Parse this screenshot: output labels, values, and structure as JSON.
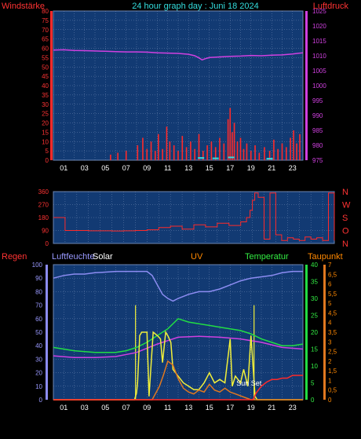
{
  "colors": {
    "background": "#000000",
    "plot_bg": "#123a73",
    "grid": "#6d86b3",
    "red": "#ff2a2a",
    "magenta": "#d040e0",
    "cyan": "#33dddd",
    "lavender": "#8c8cf2",
    "yellow": "#f2f03a",
    "orange": "#e07820",
    "green": "#22dd44",
    "white": "#ffffff",
    "tick_text": "#ffffff",
    "axis_text_red": "#ff3333",
    "axis_text_green": "#33ee44",
    "axis_text_magenta": "#dd44dd",
    "axis_text_orange": "#ff8800",
    "title_cyan": "#33dddd",
    "lavender_text": "#9999ff"
  },
  "header": {
    "title": "24 hour graph day : Juni 18 2024",
    "left_label": "Windstärke",
    "right_label": "Luftdruck"
  },
  "x_ticks": [
    "01",
    "03",
    "05",
    "07",
    "09",
    "11",
    "13",
    "15",
    "17",
    "19",
    "21",
    "23"
  ],
  "chart_data": [
    {
      "id": "wind-pressure",
      "type": "line",
      "y_left": {
        "label": "Windstärke",
        "ticks": [
          "0",
          "5",
          "10",
          "15",
          "20",
          "25",
          "30",
          "35",
          "40",
          "45",
          "50",
          "55",
          "60",
          "65",
          "70",
          "75",
          "80"
        ],
        "range": [
          0,
          80
        ]
      },
      "y_right": {
        "label": "Luftdruck",
        "ticks": [
          "975",
          "980",
          "985",
          "990",
          "995",
          "1000",
          "1005",
          "1010",
          "1015",
          "1020",
          "1025"
        ],
        "range": [
          975,
          1025
        ]
      },
      "pressure": {
        "x": [
          0,
          1,
          2,
          3,
          4,
          5,
          6,
          7,
          8,
          9,
          10,
          11,
          12,
          13,
          13.6,
          14,
          14.3,
          14.6,
          15,
          16,
          17,
          18,
          19,
          20,
          21,
          22,
          23,
          24
        ],
        "y": [
          1011.9,
          1012.0,
          1011.8,
          1011.7,
          1011.6,
          1011.5,
          1011.4,
          1011.3,
          1011.3,
          1011.2,
          1011.0,
          1010.9,
          1010.8,
          1010.5,
          1010.0,
          1009.3,
          1008.6,
          1009.0,
          1009.4,
          1009.6,
          1009.8,
          1009.9,
          1010.1,
          1010.0,
          1010.2,
          1010.3,
          1010.6,
          1011.0
        ]
      },
      "wind_bars": {
        "x": [
          5.5,
          6.2,
          7.0,
          8.1,
          8.6,
          9.0,
          9.4,
          9.8,
          10.1,
          10.5,
          10.9,
          11.2,
          11.6,
          12.0,
          12.4,
          12.8,
          13.2,
          13.6,
          14.0,
          14.4,
          14.8,
          15.2,
          15.6,
          16.0,
          16.4,
          16.8,
          17.0,
          17.2,
          17.4,
          17.7,
          18.0,
          18.3,
          18.6,
          19.0,
          19.4,
          19.8,
          20.3,
          20.8,
          21.2,
          21.6,
          22.0,
          22.4,
          22.8,
          23.1,
          23.4,
          23.7
        ],
        "values": [
          3,
          4,
          5,
          8,
          12,
          6,
          10,
          5,
          14,
          6,
          18,
          10,
          8,
          5,
          13,
          7,
          10,
          6,
          14,
          5,
          8,
          10,
          7,
          12,
          9,
          22,
          28,
          15,
          20,
          10,
          12,
          6,
          9,
          5,
          8,
          4,
          7,
          5,
          11,
          6,
          9,
          7,
          12,
          16,
          9,
          14
        ]
      },
      "wind_gust_cyan": {
        "x": [
          14.2,
          15.6,
          17.1,
          20.8
        ],
        "values": [
          1.2,
          1.0,
          1.5,
          0.8
        ]
      }
    },
    {
      "id": "wind-direction",
      "type": "line",
      "y_left": {
        "ticks": [
          "0",
          "90",
          "180",
          "270",
          "360"
        ],
        "range": [
          0,
          360
        ]
      },
      "y_right": {
        "compass": [
          "N",
          "W",
          "S",
          "O",
          "N"
        ]
      },
      "direction": {
        "x": [
          0,
          0.9,
          1.0,
          2,
          3,
          4,
          5,
          6,
          7,
          8,
          9,
          10,
          11,
          12,
          13,
          14,
          15,
          16,
          16.5,
          16.8,
          17.0,
          17.2,
          17.5,
          18,
          18.5,
          19,
          19.5,
          20,
          20.5,
          21,
          21.5,
          22,
          22.5,
          23,
          23.5,
          24
        ],
        "y": [
          180,
          180,
          90,
          90,
          88,
          88,
          87,
          88,
          90,
          95,
          110,
          120,
          100,
          130,
          115,
          140,
          125,
          150,
          180,
          230,
          300,
          350,
          320,
          30,
          350,
          60,
          20,
          40,
          30,
          20,
          45,
          30,
          40,
          20,
          350,
          20
        ]
      }
    },
    {
      "id": "multi",
      "type": "line",
      "labels": {
        "regen": "Regen",
        "luftfeuchte": "Luftfeuchte",
        "solar": "Solar",
        "uv": "UV",
        "temperatur": "Temperatur",
        "taupunkt": "Taupunkt"
      },
      "y_left": {
        "ticks": [
          "0",
          "10",
          "20",
          "30",
          "40",
          "50",
          "60",
          "70",
          "80",
          "90",
          "100"
        ],
        "range": [
          0,
          100
        ]
      },
      "y_right1": {
        "ticks": [
          "0",
          "5",
          "10",
          "15",
          "20",
          "25",
          "30",
          "35",
          "40"
        ],
        "range": [
          0,
          40
        ]
      },
      "y_right2": {
        "ticks": [
          "0",
          "0,5",
          "1",
          "1,5",
          "2",
          "2,5",
          "3",
          "3,5",
          "4",
          "4,5",
          "5",
          "5,5",
          "6",
          "6,5",
          "7"
        ],
        "range": [
          0,
          7
        ]
      },
      "annotation": "Sun Set",
      "humidity": {
        "x": [
          0,
          1,
          2,
          3,
          4,
          5,
          6,
          7,
          8,
          9,
          9.5,
          10,
          10.5,
          11,
          11.5,
          12,
          13,
          14,
          15,
          16,
          17,
          18,
          19,
          20,
          21,
          22,
          23,
          24
        ],
        "y": [
          90,
          92,
          93,
          93,
          94,
          94.5,
          95,
          95,
          95,
          95,
          92,
          85,
          78,
          75,
          73,
          75,
          78,
          80,
          80,
          82,
          85,
          88,
          90,
          91,
          92,
          94,
          95,
          95
        ]
      },
      "temperature": {
        "x": [
          0,
          2,
          4,
          6,
          7,
          8,
          9,
          10,
          11,
          12,
          13,
          14,
          15,
          16,
          17,
          18,
          19,
          20,
          21,
          22,
          23,
          24
        ],
        "y": [
          15.5,
          14.5,
          14.0,
          14.0,
          14.5,
          15.5,
          17.0,
          19.0,
          21.0,
          24.0,
          23.0,
          22.5,
          22.0,
          21.5,
          21.0,
          20.5,
          19.5,
          18.0,
          17.0,
          16.0,
          16.0,
          16.5
        ]
      },
      "dewpoint": {
        "x": [
          0,
          2,
          4,
          6,
          8,
          10,
          12,
          14,
          16,
          18,
          20,
          22,
          24
        ],
        "y": [
          13.0,
          12.5,
          12.5,
          12.8,
          14.0,
          16.5,
          18.5,
          18.8,
          18.5,
          18.0,
          17.0,
          15.5,
          15.0
        ]
      },
      "solar_uv": {
        "x": [
          0,
          7.8,
          8.0,
          8.1,
          8.3,
          8.5,
          9.0,
          9.2,
          9.6,
          10.0,
          10.3,
          10.5,
          10.8,
          11.0,
          11.3,
          11.5,
          12.0,
          12.5,
          13.0,
          13.5,
          14.0,
          14.5,
          15.0,
          15.5,
          16.0,
          16.5,
          17.0,
          17.2,
          17.5,
          18.0,
          18.3,
          18.7,
          19.0,
          19.4,
          19.6,
          24
        ],
        "y": [
          0,
          0,
          2,
          5,
          19,
          20,
          20,
          1,
          20,
          19,
          18,
          11,
          20,
          19,
          17,
          9,
          7,
          5,
          4,
          3,
          3,
          5,
          8,
          5,
          6,
          5,
          18,
          4,
          7,
          5,
          9,
          4,
          19,
          1,
          0,
          0
        ]
      },
      "uv_index": {
        "x": [
          0,
          9.5,
          9.8,
          10.2,
          10.6,
          11.0,
          11.5,
          12.0,
          12.5,
          13.0,
          13.5,
          14.0,
          14.5,
          15.0,
          15.5,
          16.0,
          16.5,
          17.0,
          17.5,
          18.0,
          18.5,
          19.0,
          24
        ],
        "y": [
          0,
          0,
          0.3,
          0.7,
          1.3,
          2.0,
          1.8,
          1.1,
          0.6,
          0.4,
          0.3,
          0.5,
          0.4,
          0.8,
          0.5,
          0.4,
          0.6,
          0.4,
          0.3,
          0.2,
          0.1,
          0,
          0
        ]
      },
      "rain": {
        "x": [
          0,
          19.2,
          19.5,
          20.0,
          20.5,
          21.0,
          21.5,
          22.0,
          22.5,
          23.0,
          23.5,
          24
        ],
        "y": [
          0,
          0,
          5,
          10,
          13,
          15,
          15,
          16,
          16,
          18,
          18,
          18
        ]
      },
      "sunset_bar_x": 19.3,
      "sunrise_bar_x": 7.9
    }
  ]
}
